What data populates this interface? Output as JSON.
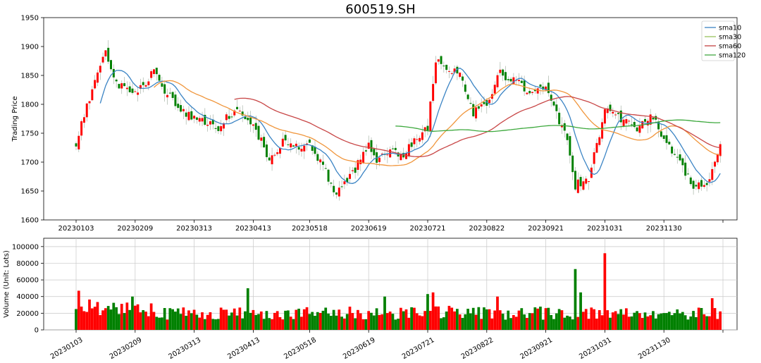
{
  "title": "600519.SH",
  "price_panel": {
    "ylabel": "Trading Price",
    "yticks": [
      "1950",
      "1900",
      "1850",
      "1800",
      "1750",
      "1700",
      "1650",
      "1600"
    ]
  },
  "volume_panel": {
    "ylabel": "Volume (Unit: Lots)",
    "yticks": [
      "0",
      "20000",
      "40000",
      "60000",
      "80000",
      "100000"
    ]
  },
  "legend": {
    "items": [
      {
        "label": "sma10",
        "color": "#4a8cc8"
      },
      {
        "label": "sma30",
        "color": "#a0c66a"
      },
      {
        "label": "sma60",
        "color": "#c75050"
      },
      {
        "label": "sma120",
        "color": "#4fae4f"
      }
    ]
  },
  "colors": {
    "up": "#ff0000",
    "down": "#008000",
    "sma10": "#3b84c4",
    "sma30": "#f0963c",
    "sma60": "#c84646",
    "sma120": "#3ca83c"
  },
  "chart_data": [
    {
      "type": "candlestick",
      "title": "600519.SH",
      "xlabel": "",
      "ylabel": "Trading Price",
      "ylim": [
        1600,
        1950
      ],
      "x_tick_labels": [
        "20230103",
        "20230209",
        "20230313",
        "20230413",
        "20230518",
        "20230619",
        "20230721",
        "20230822",
        "20230921",
        "20231031",
        "20231130"
      ],
      "close_anchors": [
        {
          "date": "20230103",
          "value": 1730
        },
        {
          "date": "20230112",
          "value": 1845
        },
        {
          "date": "20230118",
          "value": 1895
        },
        {
          "date": "20230130",
          "value": 1840
        },
        {
          "date": "20230209",
          "value": 1820
        },
        {
          "date": "20230220",
          "value": 1855
        },
        {
          "date": "20230301",
          "value": 1805
        },
        {
          "date": "20230313",
          "value": 1775
        },
        {
          "date": "20230324",
          "value": 1760
        },
        {
          "date": "20230403",
          "value": 1790
        },
        {
          "date": "20230413",
          "value": 1770
        },
        {
          "date": "20230421",
          "value": 1700
        },
        {
          "date": "20230504",
          "value": 1740
        },
        {
          "date": "20230511",
          "value": 1725
        },
        {
          "date": "20230518",
          "value": 1730
        },
        {
          "date": "20230526",
          "value": 1690
        },
        {
          "date": "20230531",
          "value": 1640
        },
        {
          "date": "20230607",
          "value": 1665
        },
        {
          "date": "20230619",
          "value": 1730
        },
        {
          "date": "20230626",
          "value": 1700
        },
        {
          "date": "20230630",
          "value": 1720
        },
        {
          "date": "20230707",
          "value": 1710
        },
        {
          "date": "20230714",
          "value": 1740
        },
        {
          "date": "20230721",
          "value": 1760
        },
        {
          "date": "20230726",
          "value": 1880
        },
        {
          "date": "20230731",
          "value": 1870
        },
        {
          "date": "20230808",
          "value": 1850
        },
        {
          "date": "20230815",
          "value": 1785
        },
        {
          "date": "20230822",
          "value": 1800
        },
        {
          "date": "20230829",
          "value": 1855
        },
        {
          "date": "20230905",
          "value": 1840
        },
        {
          "date": "20230914",
          "value": 1820
        },
        {
          "date": "20230921",
          "value": 1825
        },
        {
          "date": "20231011",
          "value": 1740
        },
        {
          "date": "20231016",
          "value": 1660
        },
        {
          "date": "20231023",
          "value": 1670
        },
        {
          "date": "20231031",
          "value": 1790
        },
        {
          "date": "20231108",
          "value": 1775
        },
        {
          "date": "20231116",
          "value": 1760
        },
        {
          "date": "20231124",
          "value": 1780
        },
        {
          "date": "20231130",
          "value": 1740
        },
        {
          "date": "20231208",
          "value": 1700
        },
        {
          "date": "20231215",
          "value": 1655
        },
        {
          "date": "20231222",
          "value": 1660
        },
        {
          "date": "20231229",
          "value": 1725
        }
      ]
    },
    {
      "type": "bar",
      "ylabel": "Volume (Unit: Lots)",
      "ylim": [
        0,
        110000
      ],
      "x_tick_labels": [
        "20230103",
        "20230209",
        "20230313",
        "20230413",
        "20230518",
        "20230619",
        "20230721",
        "20230822",
        "20230921",
        "20231031",
        "20231130"
      ],
      "volume_anchors": [
        {
          "date": "20230103",
          "value": 25000
        },
        {
          "date": "20230104",
          "value": 47000
        },
        {
          "date": "20230208",
          "value": 40000
        },
        {
          "date": "20230411",
          "value": 50000
        },
        {
          "date": "20230629",
          "value": 40000
        },
        {
          "date": "20230721",
          "value": 43000
        },
        {
          "date": "20230725",
          "value": 45000
        },
        {
          "date": "20230828",
          "value": 40000
        },
        {
          "date": "20231016",
          "value": 73000
        },
        {
          "date": "20231018",
          "value": 45000
        },
        {
          "date": "20231031",
          "value": 92000
        },
        {
          "date": "20231226",
          "value": 38000
        }
      ]
    }
  ]
}
